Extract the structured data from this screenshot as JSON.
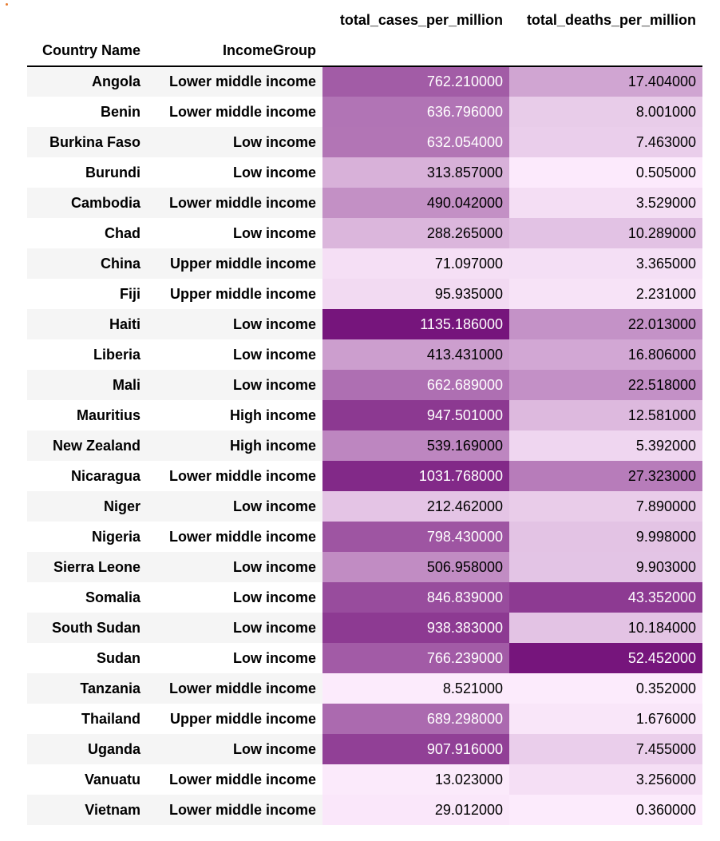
{
  "chart_data": {
    "type": "table",
    "header": {
      "index_names": [
        "Country Name",
        "IncomeGroup"
      ],
      "columns": [
        "total_cases_per_million",
        "total_deaths_per_million"
      ]
    },
    "rows": [
      {
        "country": "Angola",
        "income": "Lower middle income",
        "cases": "762.210000",
        "deaths": "17.404000"
      },
      {
        "country": "Benin",
        "income": "Lower middle income",
        "cases": "636.796000",
        "deaths": "8.001000"
      },
      {
        "country": "Burkina Faso",
        "income": "Low income",
        "cases": "632.054000",
        "deaths": "7.463000"
      },
      {
        "country": "Burundi",
        "income": "Low income",
        "cases": "313.857000",
        "deaths": "0.505000"
      },
      {
        "country": "Cambodia",
        "income": "Lower middle income",
        "cases": "490.042000",
        "deaths": "3.529000"
      },
      {
        "country": "Chad",
        "income": "Low income",
        "cases": "288.265000",
        "deaths": "10.289000"
      },
      {
        "country": "China",
        "income": "Upper middle income",
        "cases": "71.097000",
        "deaths": "3.365000"
      },
      {
        "country": "Fiji",
        "income": "Upper middle income",
        "cases": "95.935000",
        "deaths": "2.231000"
      },
      {
        "country": "Haiti",
        "income": "Low income",
        "cases": "1135.186000",
        "deaths": "22.013000"
      },
      {
        "country": "Liberia",
        "income": "Low income",
        "cases": "413.431000",
        "deaths": "16.806000"
      },
      {
        "country": "Mali",
        "income": "Low income",
        "cases": "662.689000",
        "deaths": "22.518000"
      },
      {
        "country": "Mauritius",
        "income": "High income",
        "cases": "947.501000",
        "deaths": "12.581000"
      },
      {
        "country": "New Zealand",
        "income": "High income",
        "cases": "539.169000",
        "deaths": "5.392000"
      },
      {
        "country": "Nicaragua",
        "income": "Lower middle income",
        "cases": "1031.768000",
        "deaths": "27.323000"
      },
      {
        "country": "Niger",
        "income": "Low income",
        "cases": "212.462000",
        "deaths": "7.890000"
      },
      {
        "country": "Nigeria",
        "income": "Lower middle income",
        "cases": "798.430000",
        "deaths": "9.998000"
      },
      {
        "country": "Sierra Leone",
        "income": "Low income",
        "cases": "506.958000",
        "deaths": "9.903000"
      },
      {
        "country": "Somalia",
        "income": "Low income",
        "cases": "846.839000",
        "deaths": "43.352000"
      },
      {
        "country": "South Sudan",
        "income": "Low income",
        "cases": "938.383000",
        "deaths": "10.184000"
      },
      {
        "country": "Sudan",
        "income": "Low income",
        "cases": "766.239000",
        "deaths": "52.452000"
      },
      {
        "country": "Tanzania",
        "income": "Lower middle income",
        "cases": "8.521000",
        "deaths": "0.352000"
      },
      {
        "country": "Thailand",
        "income": "Upper middle income",
        "cases": "689.298000",
        "deaths": "1.676000"
      },
      {
        "country": "Uganda",
        "income": "Low income",
        "cases": "907.916000",
        "deaths": "7.455000"
      },
      {
        "country": "Vanuatu",
        "income": "Lower middle income",
        "cases": "13.023000",
        "deaths": "3.256000"
      },
      {
        "country": "Vietnam",
        "income": "Lower middle income",
        "cases": "29.012000",
        "deaths": "0.360000"
      }
    ],
    "colormap": {
      "low": "#fcebfc",
      "high": "#76157c",
      "text_light": "#ffffff",
      "text_dark": "#000000"
    }
  }
}
